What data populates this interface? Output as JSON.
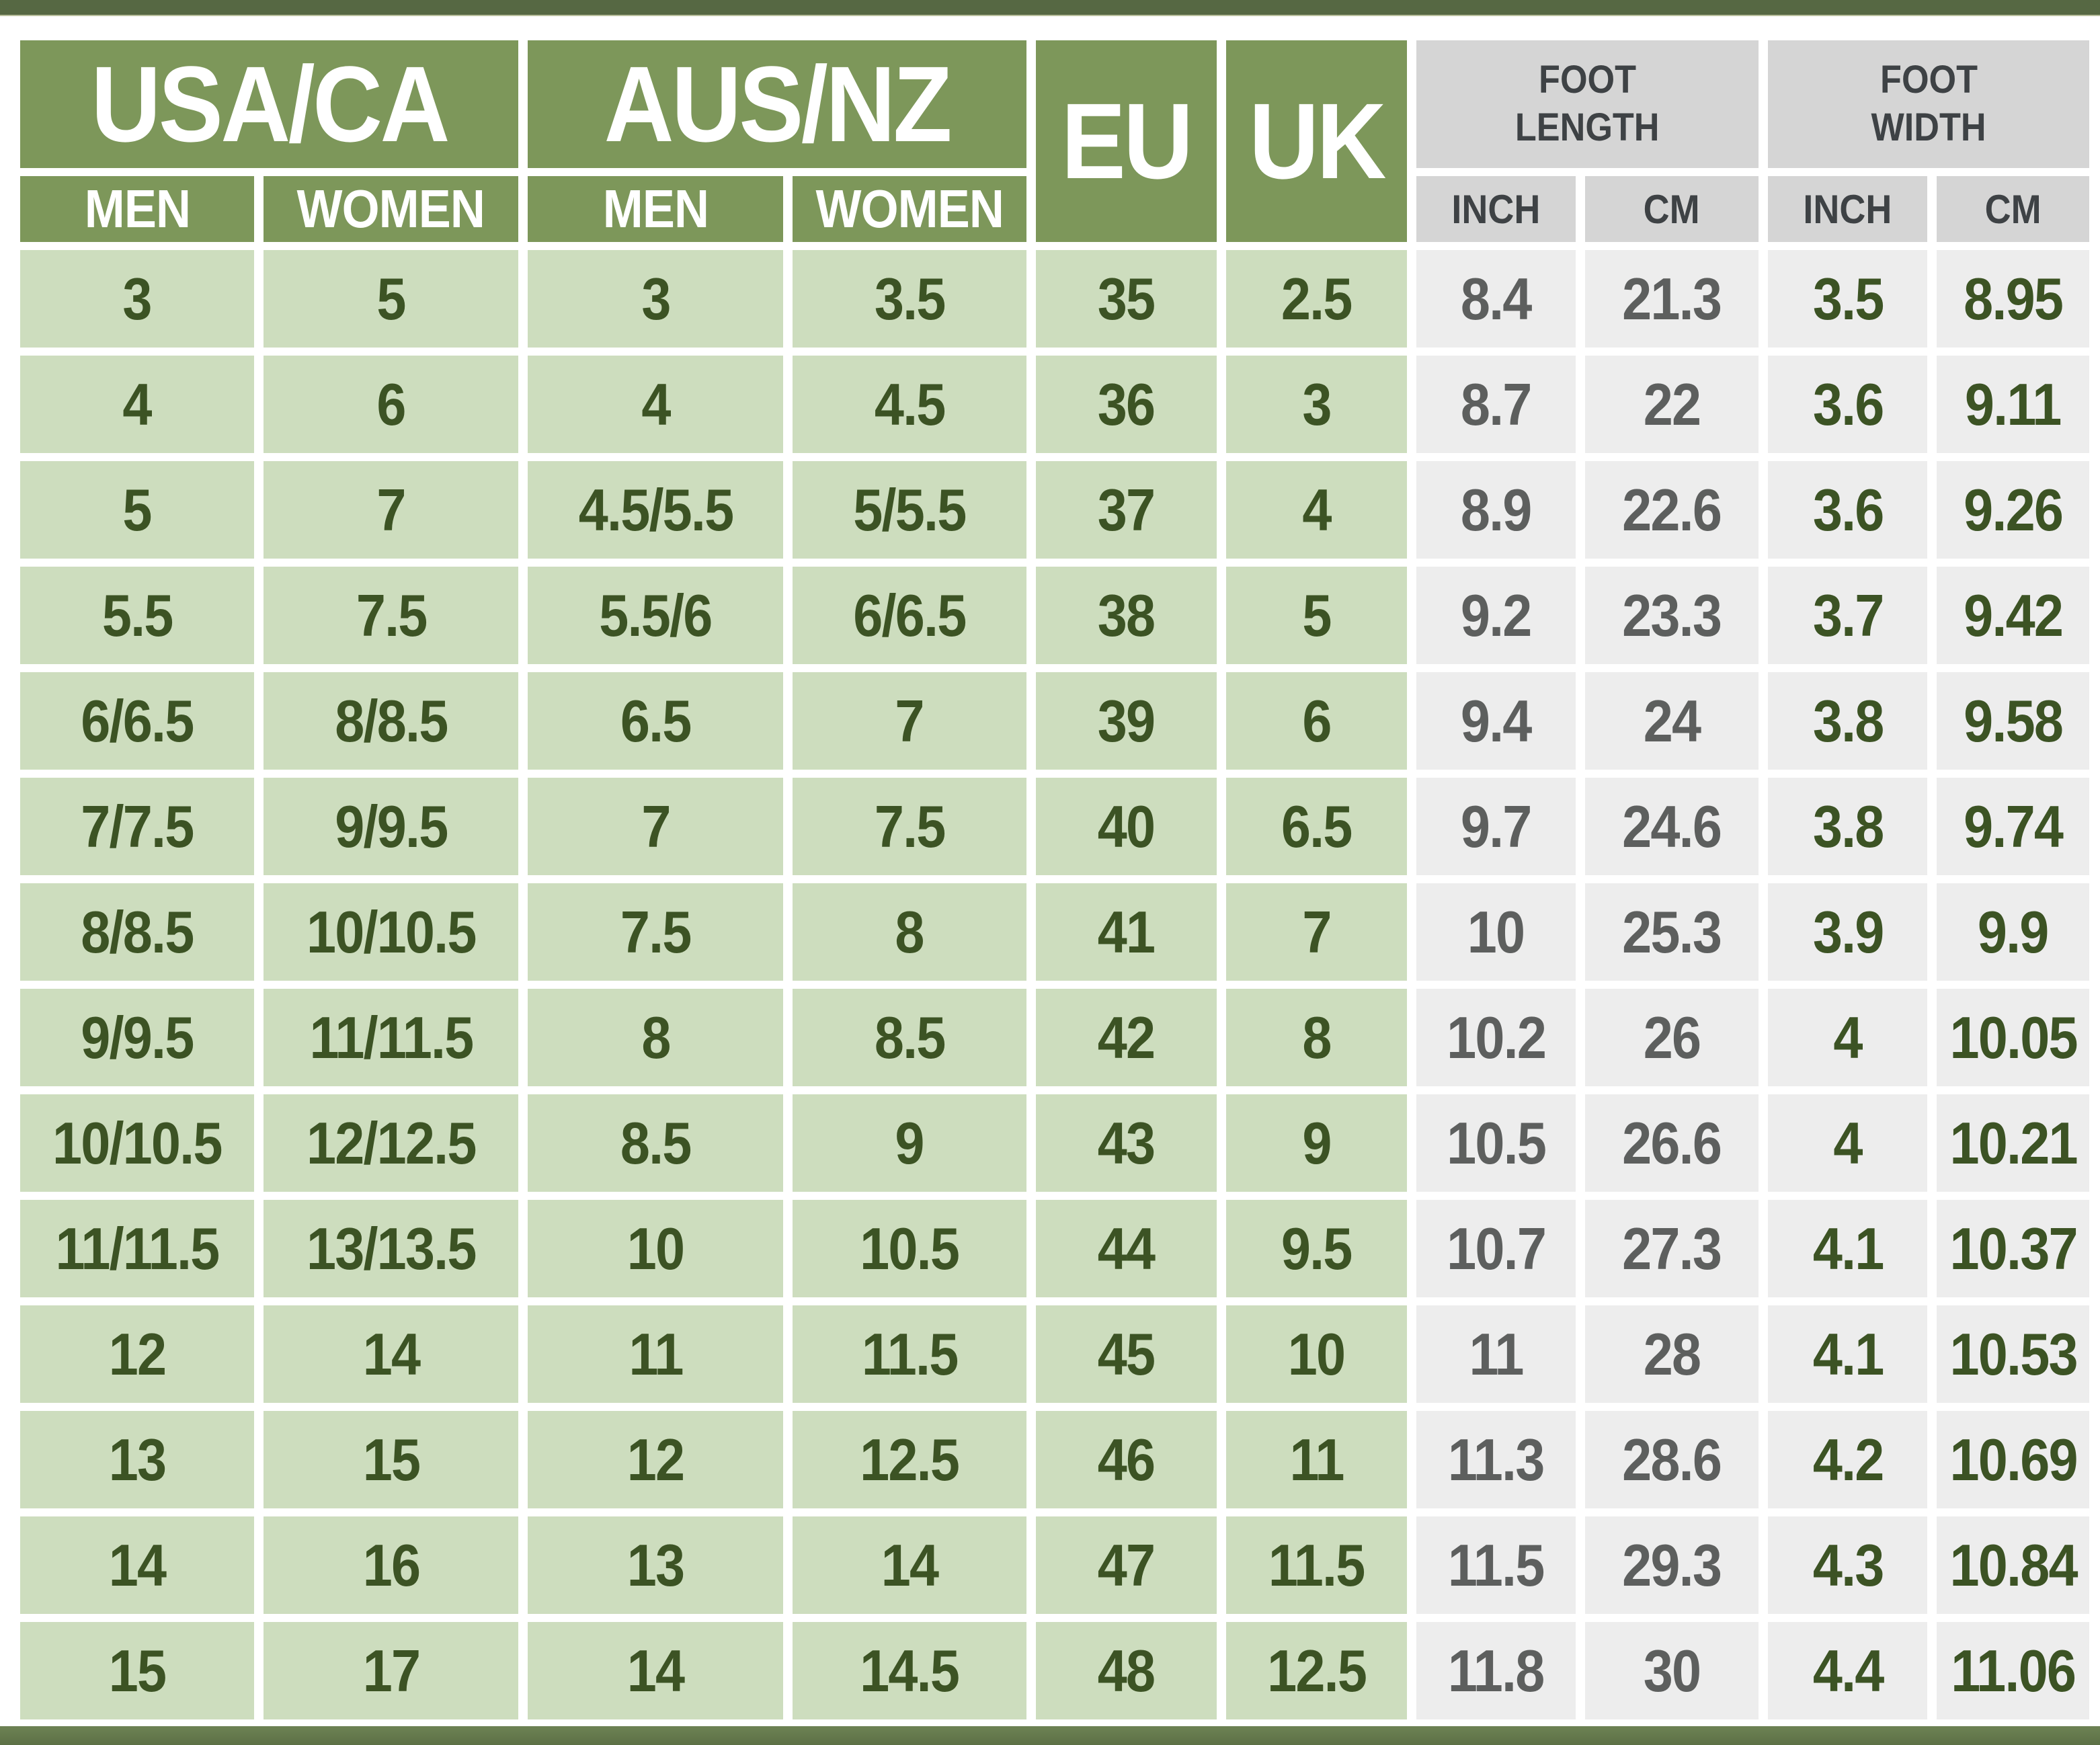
{
  "table": {
    "header": {
      "usa_ca": "USA/CA",
      "aus_nz": "AUS/NZ",
      "eu": "EU",
      "uk": "UK",
      "men": "MEN",
      "women": "WOMEN",
      "inch": "INCH",
      "cm": "CM",
      "foot_length": [
        "FOOT",
        "LENGTH"
      ],
      "foot_width": [
        "FOOT",
        "WIDTH"
      ]
    },
    "column_keys": [
      "usa-men",
      "usa-women",
      "aus-men",
      "aus-women",
      "eu",
      "uk",
      "foot-length-inch",
      "foot-length-cm",
      "foot-width-inch",
      "foot-width-cm"
    ]
  },
  "chart_data": {
    "type": "table",
    "column_groups": [
      {
        "label": "USA/CA",
        "sub": [
          "MEN",
          "WOMEN"
        ]
      },
      {
        "label": "AUS/NZ",
        "sub": [
          "MEN",
          "WOMEN"
        ]
      },
      {
        "label": "EU"
      },
      {
        "label": "UK"
      },
      {
        "label": "FOOT LENGTH",
        "sub": [
          "INCH",
          "CM"
        ]
      },
      {
        "label": "FOOT WIDTH",
        "sub": [
          "INCH",
          "CM"
        ]
      }
    ],
    "rows": [
      [
        "3",
        "5",
        "3",
        "3.5",
        "35",
        "2.5",
        "8.4",
        "21.3",
        "3.5",
        "8.95"
      ],
      [
        "4",
        "6",
        "4",
        "4.5",
        "36",
        "3",
        "8.7",
        "22",
        "3.6",
        "9.11"
      ],
      [
        "5",
        "7",
        "4.5/5.5",
        "5/5.5",
        "37",
        "4",
        "8.9",
        "22.6",
        "3.6",
        "9.26"
      ],
      [
        "5.5",
        "7.5",
        "5.5/6",
        "6/6.5",
        "38",
        "5",
        "9.2",
        "23.3",
        "3.7",
        "9.42"
      ],
      [
        "6/6.5",
        "8/8.5",
        "6.5",
        "7",
        "39",
        "6",
        "9.4",
        "24",
        "3.8",
        "9.58"
      ],
      [
        "7/7.5",
        "9/9.5",
        "7",
        "7.5",
        "40",
        "6.5",
        "9.7",
        "24.6",
        "3.8",
        "9.74"
      ],
      [
        "8/8.5",
        "10/10.5",
        "7.5",
        "8",
        "41",
        "7",
        "10",
        "25.3",
        "3.9",
        "9.9"
      ],
      [
        "9/9.5",
        "11/11.5",
        "8",
        "8.5",
        "42",
        "8",
        "10.2",
        "26",
        "4",
        "10.05"
      ],
      [
        "10/10.5",
        "12/12.5",
        "8.5",
        "9",
        "43",
        "9",
        "10.5",
        "26.6",
        "4",
        "10.21"
      ],
      [
        "11/11.5",
        "13/13.5",
        "10",
        "10.5",
        "44",
        "9.5",
        "10.7",
        "27.3",
        "4.1",
        "10.37"
      ],
      [
        "12",
        "14",
        "11",
        "11.5",
        "45",
        "10",
        "11",
        "28",
        "4.1",
        "10.53"
      ],
      [
        "13",
        "15",
        "12",
        "12.5",
        "46",
        "11",
        "11.3",
        "28.6",
        "4.2",
        "10.69"
      ],
      [
        "14",
        "16",
        "13",
        "14",
        "47",
        "11.5",
        "11.5",
        "29.3",
        "4.3",
        "10.84"
      ],
      [
        "15",
        "17",
        "14",
        "14.5",
        "48",
        "12.5",
        "11.8",
        "30",
        "4.4",
        "11.06"
      ]
    ]
  },
  "colors": {
    "top_bar": "#566843",
    "bottom_bar_a": "#6d8254",
    "bottom_bar_b": "#5c7045",
    "header_green": "#7d975a",
    "header_text": "#ffffff",
    "gray_header_bg": "#d5d5d5",
    "gray_header_text": "#3e4245",
    "cell_green_bg": "#cdddbe",
    "cell_green_text": "#3c5324",
    "cell_gray_bg": "#ededed",
    "cell_gray_text": "#5d5f5e"
  }
}
